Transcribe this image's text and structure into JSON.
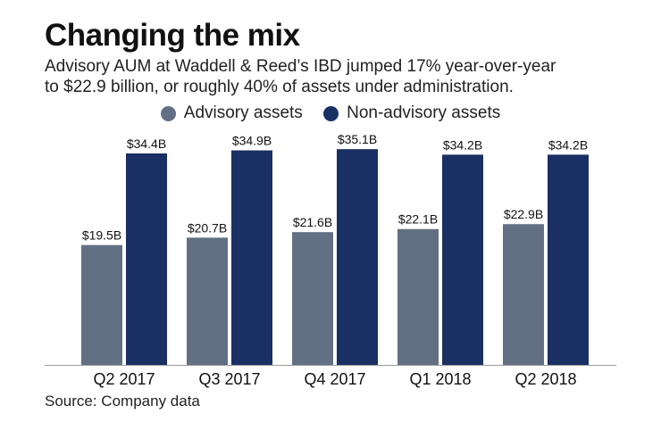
{
  "title": "Changing the mix",
  "subtitle_lines": [
    "Advisory AUM at Waddell & Reed’s IBD jumped 17% year-over-year",
    "to $22.9 billion, or roughly 40% of assets under administration."
  ],
  "source": "Source: Company data",
  "colors": {
    "advisory": "#637084",
    "non_advisory": "#1a2f63"
  },
  "chart_data": {
    "type": "bar",
    "categories": [
      "Q2 2017",
      "Q3 2017",
      "Q4 2017",
      "Q1 2018",
      "Q2 2018"
    ],
    "series": [
      {
        "name": "Advisory assets",
        "values": [
          19.5,
          20.7,
          21.6,
          22.1,
          22.9
        ],
        "labels": [
          "$19.5B",
          "$20.7B",
          "$21.6B",
          "$22.1B",
          "$22.9B"
        ]
      },
      {
        "name": "Non-advisory assets",
        "values": [
          34.4,
          34.9,
          35.1,
          34.2,
          34.2
        ],
        "labels": [
          "$34.4B",
          "$34.9B",
          "$35.1B",
          "$34.2B",
          "$34.2B"
        ]
      }
    ],
    "unit": "billion USD",
    "ylim": [
      0,
      35.1
    ],
    "grid": false,
    "legend": "top-center"
  }
}
